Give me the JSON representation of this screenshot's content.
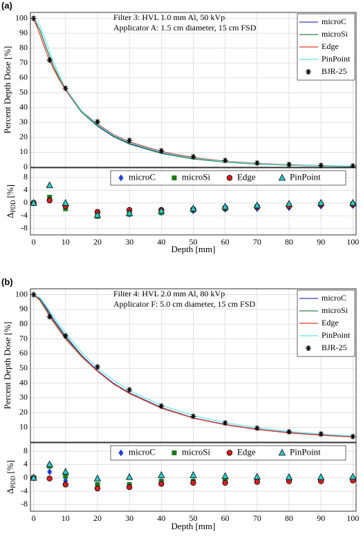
{
  "chart_data": [
    {
      "type": "line",
      "label": "(a)",
      "annotations": [
        "Filter 3: HVL 1.0 mm Al, 50 kVp",
        "Applicator A: 1.5 cm diameter, 15 cm FSD"
      ],
      "ylabel": "Percent Depth Dose [%]",
      "xlim": [
        -1,
        101
      ],
      "ylim": [
        0,
        104
      ],
      "xticks": [
        0,
        10,
        20,
        30,
        40,
        50,
        60,
        70,
        80,
        90,
        100
      ],
      "yticks": [
        0,
        10,
        20,
        30,
        40,
        50,
        60,
        70,
        80,
        90,
        100
      ],
      "grid": true,
      "legend": "upper right",
      "series": [
        {
          "name": "microC",
          "color": "#3b3bb0",
          "style": "line",
          "x": [
            0,
            2,
            4,
            6,
            8,
            10,
            15,
            20,
            25,
            30,
            40,
            50,
            60,
            70,
            80,
            90,
            100
          ],
          "values": [
            100,
            92,
            80,
            69,
            60,
            52,
            37,
            28,
            21,
            16,
            9.5,
            5.7,
            3.5,
            2.2,
            1.4,
            0.9,
            0.6
          ]
        },
        {
          "name": "microSi",
          "color": "#2e7d4f",
          "style": "line",
          "x": [
            0,
            2,
            4,
            6,
            8,
            10,
            15,
            20,
            25,
            30,
            40,
            50,
            60,
            70,
            80,
            90,
            100
          ],
          "values": [
            100,
            92,
            80,
            69,
            60,
            52,
            37,
            27.5,
            20.5,
            15.5,
            9.2,
            5.5,
            3.4,
            2.1,
            1.3,
            0.8,
            0.5
          ]
        },
        {
          "name": "Edge",
          "color": "#e03a2a",
          "style": "line",
          "x": [
            0,
            2,
            4,
            6,
            8,
            10,
            15,
            20,
            25,
            30,
            40,
            50,
            60,
            70,
            80,
            90,
            100
          ],
          "values": [
            100,
            89,
            77,
            67,
            59,
            52,
            38,
            29,
            22,
            17,
            10.5,
            6.5,
            4,
            2.6,
            1.7,
            1.1,
            0.7
          ]
        },
        {
          "name": "PinPoint",
          "color": "#5ee8e8",
          "style": "line",
          "x": [
            0,
            2,
            4,
            6,
            8,
            10,
            15,
            20,
            25,
            30,
            40,
            50,
            60,
            70,
            80,
            90,
            100
          ],
          "values": [
            100,
            95,
            84,
            72,
            62,
            53,
            38,
            28.5,
            21.5,
            16.5,
            10,
            6,
            3.8,
            2.4,
            1.5,
            1,
            0.7
          ]
        },
        {
          "name": "BJR-25",
          "color": "#000000",
          "style": "marker",
          "marker": "asterisk",
          "x": [
            0,
            5,
            10,
            20,
            30,
            40,
            50,
            60,
            70,
            80,
            90,
            100
          ],
          "values": [
            100,
            72,
            53,
            30.5,
            18,
            11,
            7,
            4.5,
            2.8,
            1.8,
            1.2,
            0.8
          ]
        }
      ]
    },
    {
      "type": "scatter",
      "ylabel": [
        "Δ",
        "PDD",
        "[%]"
      ],
      "xlabel": "Depth [mm]",
      "xlim": [
        -1,
        101
      ],
      "ylim": [
        -10,
        11
      ],
      "xticks": [
        0,
        10,
        20,
        30,
        40,
        50,
        60,
        70,
        80,
        90,
        100
      ],
      "yticks": [
        -8,
        -4,
        0,
        4,
        8
      ],
      "grid": true,
      "legend": "upper center",
      "series": [
        {
          "name": "microC",
          "color": "#1f3fd8",
          "style": "marker",
          "marker": "diamond",
          "x": [
            0,
            5,
            10,
            20,
            30,
            40,
            50,
            60,
            70,
            80,
            90,
            100
          ],
          "values": [
            0,
            1.5,
            -1.5,
            -4,
            -3.5,
            -3,
            -2.5,
            -2,
            -1.8,
            -1.5,
            -1,
            -0.8
          ]
        },
        {
          "name": "microSi",
          "color": "#1a7a1a",
          "style": "marker",
          "marker": "square",
          "x": [
            0,
            5,
            10,
            20,
            30,
            40,
            50,
            60,
            70,
            80,
            90,
            100
          ],
          "values": [
            0,
            1.8,
            -1.8,
            -4.2,
            -3.5,
            -3,
            -2.2,
            -1.8,
            -1.2,
            -0.8,
            -0.5,
            -0.3
          ]
        },
        {
          "name": "Edge",
          "color": "#d42020",
          "style": "marker",
          "marker": "circle",
          "x": [
            0,
            5,
            10,
            20,
            30,
            40,
            50,
            60,
            70,
            80,
            90,
            100
          ],
          "values": [
            0,
            0.8,
            -1,
            -2.8,
            -2.2,
            -2.2,
            -2,
            -1.5,
            -1.2,
            -1,
            -0.5,
            -0.5
          ]
        },
        {
          "name": "PinPoint",
          "color": "#2ec8c8",
          "style": "marker",
          "marker": "triangle",
          "x": [
            0,
            5,
            10,
            20,
            30,
            40,
            50,
            60,
            70,
            80,
            90,
            100
          ],
          "values": [
            0,
            5.5,
            0,
            -3.8,
            -3.2,
            -2.5,
            -1.8,
            -1.2,
            -0.8,
            -0.3,
            0,
            0
          ]
        }
      ]
    },
    {
      "type": "line",
      "label": "(b)",
      "annotations": [
        "Filter 4: HVL 2.0 mm Al, 80 kVp",
        "Applicator F: 5.0 cm diameter, 15 cm FSD"
      ],
      "ylabel": "Percent Depth Dose [%]",
      "xlim": [
        -1,
        101
      ],
      "ylim": [
        0,
        104
      ],
      "xticks": [
        0,
        10,
        20,
        30,
        40,
        50,
        60,
        70,
        80,
        90,
        100
      ],
      "yticks": [
        10,
        20,
        30,
        40,
        50,
        60,
        70,
        80,
        90,
        100
      ],
      "grid": true,
      "legend": "upper right",
      "series": [
        {
          "name": "microC",
          "color": "#3b3bb0",
          "style": "line",
          "x": [
            0,
            2,
            4,
            6,
            8,
            10,
            15,
            20,
            25,
            30,
            40,
            50,
            60,
            70,
            80,
            90,
            100
          ],
          "values": [
            100,
            97,
            91,
            84,
            78,
            72,
            59,
            48.5,
            40,
            33.5,
            23.5,
            16.5,
            12,
            8.8,
            6.5,
            4.8,
            3.6
          ]
        },
        {
          "name": "microSi",
          "color": "#2e7d4f",
          "style": "line",
          "x": [
            0,
            2,
            4,
            6,
            8,
            10,
            15,
            20,
            25,
            30,
            40,
            50,
            60,
            70,
            80,
            90,
            100
          ],
          "values": [
            100,
            96.5,
            90,
            83,
            77,
            71,
            58.5,
            48,
            39.5,
            33,
            23.2,
            16.3,
            11.8,
            8.6,
            6.3,
            4.7,
            3.5
          ]
        },
        {
          "name": "Edge",
          "color": "#e03a2a",
          "style": "line",
          "x": [
            0,
            2,
            4,
            6,
            8,
            10,
            15,
            20,
            25,
            30,
            40,
            50,
            60,
            70,
            80,
            90,
            100
          ],
          "values": [
            100,
            96,
            89,
            82,
            76,
            70,
            58,
            48,
            39.5,
            33,
            23,
            16.3,
            11.8,
            8.6,
            6.3,
            4.7,
            3.5
          ]
        },
        {
          "name": "PinPoint",
          "color": "#5ee8e8",
          "style": "line",
          "x": [
            0,
            2,
            4,
            6,
            8,
            10,
            15,
            20,
            25,
            30,
            40,
            50,
            60,
            70,
            80,
            90,
            100
          ],
          "values": [
            100,
            98,
            92,
            86,
            80,
            74,
            61,
            50,
            42,
            35,
            25,
            18,
            13.2,
            9.8,
            7.3,
            5.5,
            4.2
          ]
        },
        {
          "name": "BJR-25",
          "color": "#000000",
          "style": "marker",
          "marker": "asterisk",
          "x": [
            0,
            5,
            10,
            20,
            30,
            40,
            50,
            60,
            70,
            80,
            90,
            100
          ],
          "values": [
            100,
            85,
            72,
            51,
            35.5,
            24.5,
            17.5,
            13,
            9.5,
            7,
            5.5,
            3.8
          ]
        }
      ]
    },
    {
      "type": "scatter",
      "ylabel": [
        "Δ",
        "PDD",
        "[%]"
      ],
      "xlabel": "Depth [mm]",
      "xlim": [
        -1,
        101
      ],
      "ylim": [
        -10,
        10.5
      ],
      "xticks": [
        0,
        10,
        20,
        30,
        40,
        50,
        60,
        70,
        80,
        90,
        100
      ],
      "yticks": [
        -8,
        -4,
        0,
        4,
        8
      ],
      "grid": true,
      "legend": "upper center",
      "series": [
        {
          "name": "microC",
          "color": "#1f3fd8",
          "style": "marker",
          "marker": "diamond",
          "x": [
            0,
            5,
            10,
            20,
            30,
            40,
            50,
            60,
            70,
            80,
            90,
            100
          ],
          "values": [
            0,
            1.8,
            -0.8,
            -2.2,
            -2.2,
            -1,
            -1,
            -1,
            -0.8,
            -0.5,
            -0.5,
            -0.3
          ]
        },
        {
          "name": "microSi",
          "color": "#1a7a1a",
          "style": "marker",
          "marker": "square",
          "x": [
            0,
            5,
            10,
            20,
            30,
            40,
            50,
            60,
            70,
            80,
            90,
            100
          ],
          "values": [
            0,
            3.5,
            0.5,
            -2,
            -2,
            -1,
            -1,
            -1,
            -0.8,
            -0.5,
            -0.5,
            -0.3
          ]
        },
        {
          "name": "Edge",
          "color": "#d42020",
          "style": "marker",
          "marker": "circle",
          "x": [
            0,
            5,
            10,
            20,
            30,
            40,
            50,
            60,
            70,
            80,
            90,
            100
          ],
          "values": [
            0,
            -0.2,
            -2,
            -3.2,
            -2.8,
            -1.8,
            -1.5,
            -1.5,
            -1.2,
            -1,
            -1,
            -0.8
          ]
        },
        {
          "name": "PinPoint",
          "color": "#2ec8c8",
          "style": "marker",
          "marker": "triangle",
          "x": [
            0,
            5,
            10,
            20,
            30,
            40,
            50,
            60,
            70,
            80,
            90,
            100
          ],
          "values": [
            0,
            4,
            1.8,
            -0.2,
            0.2,
            0.8,
            0.8,
            0.5,
            0.3,
            0.2,
            0.2,
            0.3
          ]
        }
      ]
    }
  ]
}
